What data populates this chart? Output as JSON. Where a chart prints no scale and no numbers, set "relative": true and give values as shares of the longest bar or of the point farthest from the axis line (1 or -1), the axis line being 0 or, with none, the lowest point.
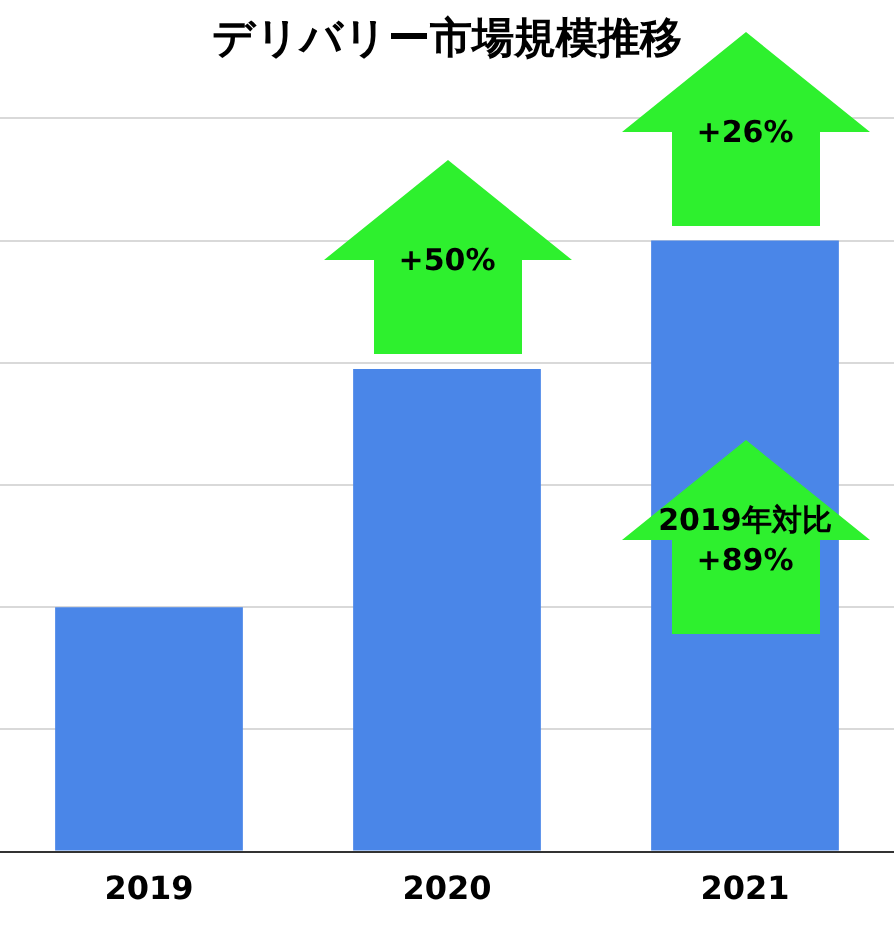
{
  "chart_data": {
    "type": "bar",
    "title": "デリバリー市場規模推移",
    "categories": [
      "2019",
      "2020",
      "2021"
    ],
    "values": [
      0.4,
      0.79,
      1
    ],
    "color": "#4a86e8",
    "relative": true,
    "grid": "y",
    "annotations": [
      "+50%",
      "+26%",
      "2019年対比\n+89%"
    ]
  }
}
